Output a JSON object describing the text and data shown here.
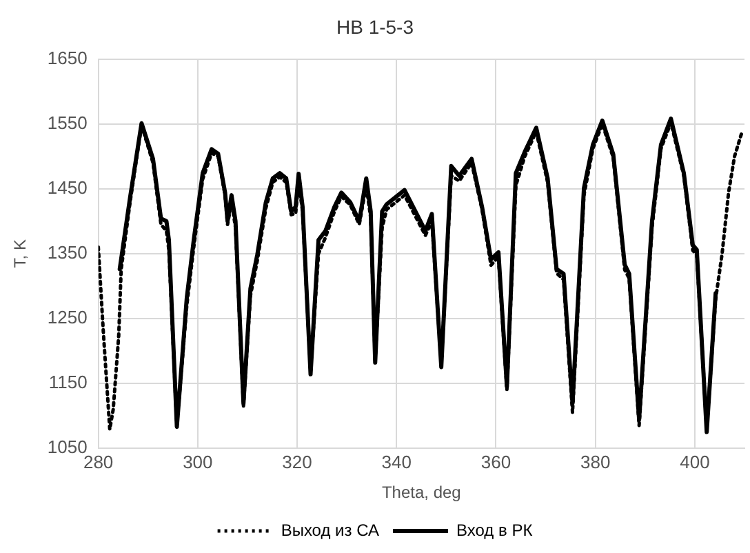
{
  "chart_data": {
    "type": "line",
    "title": "НВ 1-5-3",
    "xlabel": "Theta, deg",
    "ylabel": "T, K",
    "xlim": [
      280,
      410
    ],
    "xticks": [
      280,
      300,
      320,
      340,
      360,
      380,
      400
    ],
    "ylim": [
      1050,
      1650
    ],
    "yticks": [
      1050,
      1150,
      1250,
      1350,
      1450,
      1550,
      1650
    ],
    "grid": true,
    "legend": "bottom",
    "marker": "none",
    "series": [
      {
        "name": "Выход из СА",
        "color": "#000000",
        "line_style": "dotted",
        "x": [
          280,
          281,
          282.3,
          283,
          284.1,
          284.6,
          286.4,
          288.7,
          291,
          292.6,
          293.7,
          294.2,
          295.8,
          297.8,
          299.2,
          301,
          302.8,
          304.1,
          305.5,
          306,
          306.8,
          307.6,
          309.2,
          310.6,
          312,
          313.7,
          315.1,
          316.5,
          317.8,
          318.8,
          319.7,
          320.3,
          321.1,
          322.7,
          324.3,
          325.7,
          327.5,
          328.9,
          330.7,
          332.5,
          333.9,
          334.8,
          335.7,
          337.1,
          338,
          341.6,
          345.8,
          347.1,
          349,
          351,
          352.6,
          355.1,
          357.2,
          359,
          360.5,
          362.2,
          364,
          365.8,
          368.1,
          370.4,
          372.2,
          373.6,
          375.4,
          377.7,
          379.5,
          381.4,
          383.6,
          385.9,
          386.8,
          388.8,
          391.4,
          393.2,
          395.2,
          397.8,
          399.6,
          400.4,
          402.4,
          404.2,
          405.5,
          406.8,
          408,
          409.6
        ],
        "values": [
          1360,
          1230,
          1079,
          1110,
          1223,
          1326,
          1430,
          1548,
          1490,
          1395,
          1385,
          1355,
          1085,
          1270,
          1360,
          1465,
          1505,
          1500,
          1440,
          1395,
          1430,
          1390,
          1115,
          1285,
          1340,
          1420,
          1460,
          1468,
          1460,
          1410,
          1412,
          1460,
          1415,
          1168,
          1350,
          1375,
          1415,
          1438,
          1425,
          1395,
          1455,
          1405,
          1185,
          1390,
          1418,
          1440,
          1378,
          1400,
          1180,
          1470,
          1462,
          1490,
          1418,
          1332,
          1345,
          1140,
          1455,
          1500,
          1538,
          1460,
          1320,
          1310,
          1105,
          1440,
          1512,
          1550,
          1498,
          1325,
          1312,
          1085,
          1390,
          1512,
          1552,
          1470,
          1355,
          1348,
          1080,
          1280,
          1350,
          1444,
          1500,
          1540
        ]
      },
      {
        "name": "Вход в РК",
        "color": "#000000",
        "line_style": "solid",
        "x": [
          284.3,
          286.4,
          288.7,
          291,
          292.6,
          293.7,
          294.2,
          295.8,
          297.8,
          299.2,
          301,
          302.8,
          304.1,
          305.5,
          306,
          306.8,
          307.6,
          309.2,
          310.6,
          312,
          313.7,
          315.1,
          316.5,
          317.8,
          318.8,
          319.7,
          320.3,
          321.1,
          322.7,
          324.3,
          325.7,
          327.5,
          328.9,
          330.7,
          332.5,
          333.9,
          334.8,
          335.7,
          337.1,
          338,
          341.6,
          345.8,
          347.1,
          349,
          351,
          352.6,
          355.1,
          357.2,
          359,
          360.5,
          362.2,
          364,
          365.8,
          368.1,
          370.4,
          372.2,
          373.6,
          375.4,
          377.7,
          379.5,
          381.4,
          383.6,
          385.9,
          386.8,
          388.8,
          391.4,
          393.2,
          395.2,
          397.8,
          399.6,
          400.4,
          402.4,
          404.2
        ],
        "values": [
          1326,
          1437,
          1551,
          1496,
          1404,
          1400,
          1371,
          1083,
          1282,
          1371,
          1474,
          1511,
          1504,
          1444,
          1400,
          1440,
          1400,
          1119,
          1296,
          1349,
          1429,
          1466,
          1474,
          1466,
          1415,
          1422,
          1473,
          1422,
          1164,
          1371,
          1385,
          1422,
          1444,
          1429,
          1400,
          1466,
          1415,
          1182,
          1415,
          1426,
          1448,
          1385,
          1411,
          1175,
          1485,
          1470,
          1496,
          1422,
          1341,
          1352,
          1145,
          1474,
          1507,
          1544,
          1466,
          1326,
          1319,
          1119,
          1451,
          1518,
          1555,
          1503,
          1333,
          1319,
          1094,
          1400,
          1518,
          1558,
          1474,
          1363,
          1356,
          1075,
          1289
        ]
      }
    ]
  }
}
